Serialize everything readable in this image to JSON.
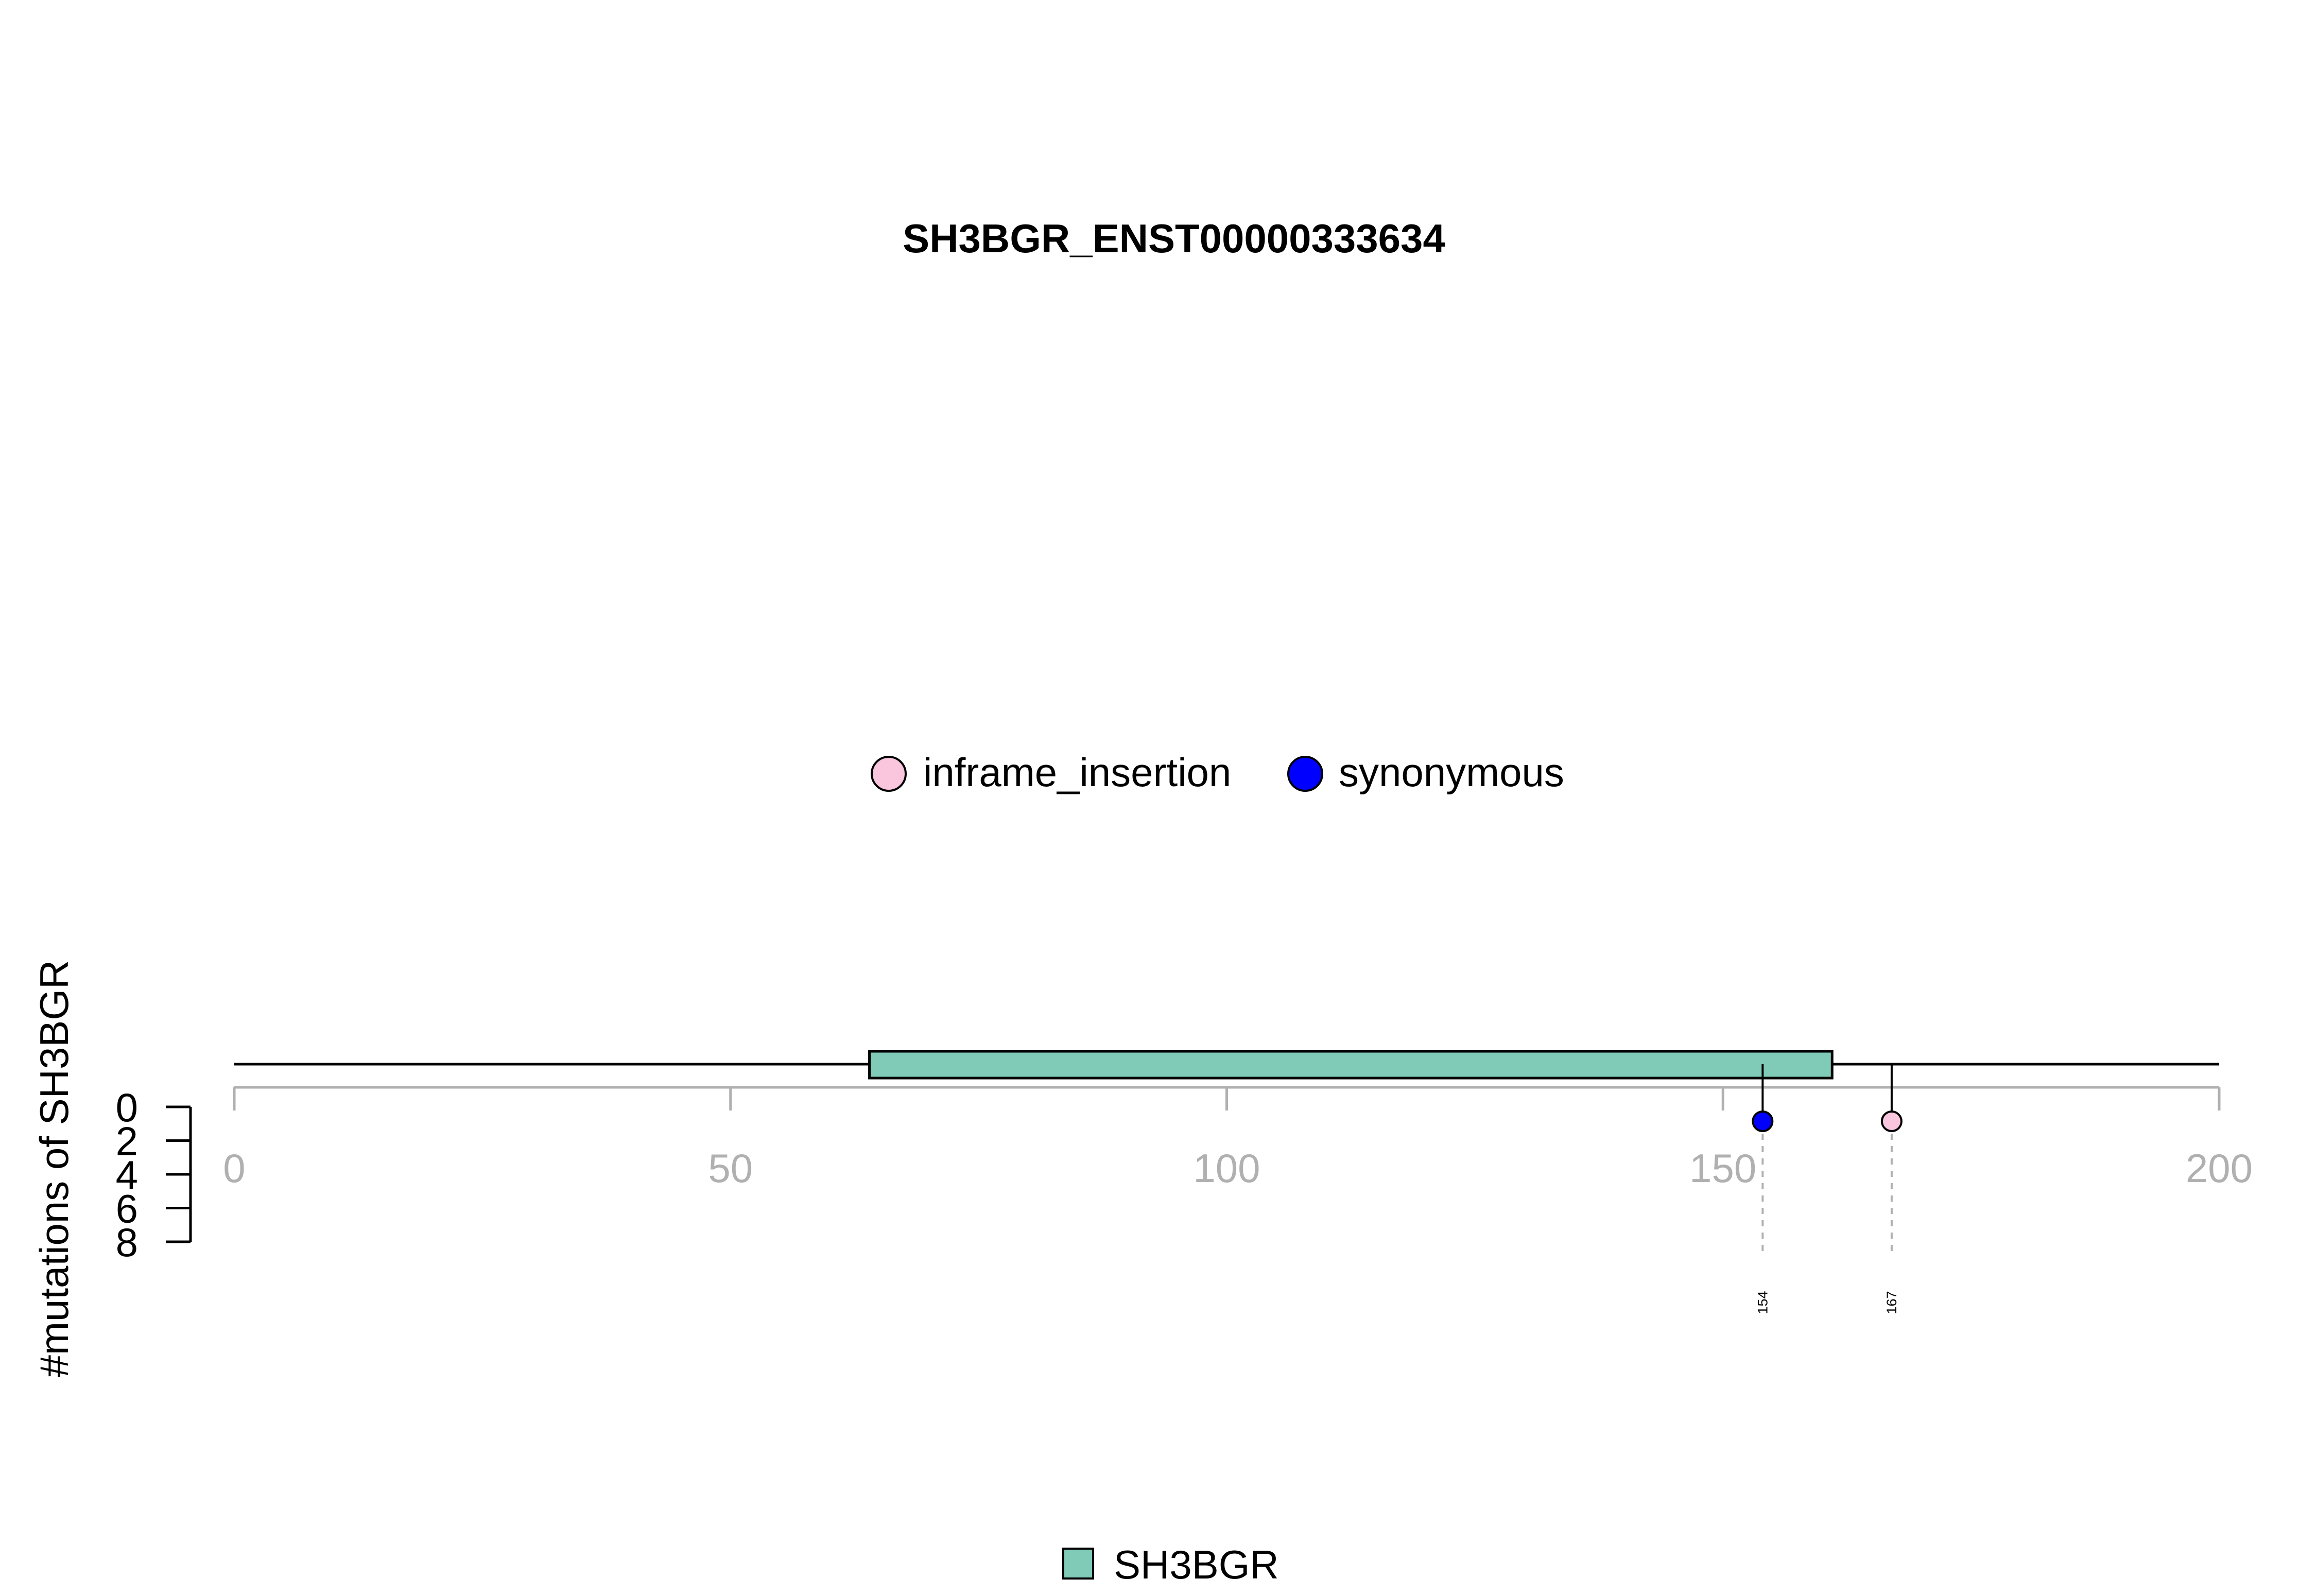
{
  "chart_data": {
    "type": "lollipop",
    "title": "SH3BGR_ENST00000333634",
    "xlabel": "",
    "ylabel": "#mutations of SH3BGR",
    "xlim": [
      0,
      200
    ],
    "x_ticks": [
      0,
      50,
      100,
      150,
      200
    ],
    "x_tick_labels": [
      "0",
      "50",
      "100",
      "150",
      "200"
    ],
    "y_ticks": [
      0,
      2,
      4,
      6,
      8
    ],
    "y_tick_labels": [
      "0",
      "2",
      "4",
      "6",
      "8"
    ],
    "ylim": [
      0,
      8
    ],
    "grid": false,
    "legend_position": "top-center",
    "legend": [
      {
        "label": "inframe_insertion",
        "color": "#f9c6dd"
      },
      {
        "label": "synonymous",
        "color": "#0000ff"
      }
    ],
    "protein_length": 200,
    "domains": [
      {
        "name": "SH3BGR",
        "start": 64,
        "end": 161,
        "color": "#7fcbb7"
      }
    ],
    "domain_legend_position": "bottom-center",
    "mutations": [
      {
        "position": 154,
        "label": "154",
        "count": 1,
        "type": "synonymous",
        "color": "#0000ff"
      },
      {
        "position": 167,
        "label": "167",
        "count": 1,
        "type": "inframe_insertion",
        "color": "#f9c6dd"
      }
    ]
  }
}
